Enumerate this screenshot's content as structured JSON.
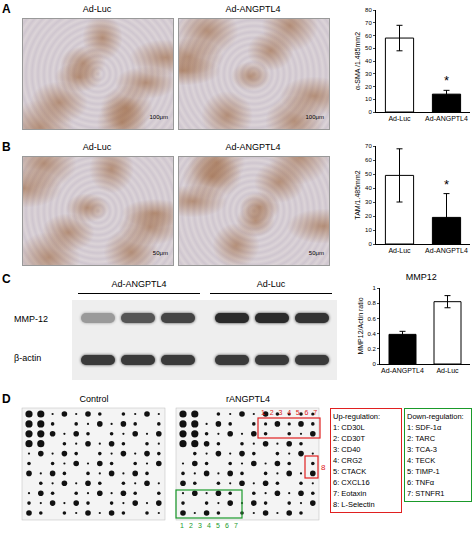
{
  "chart_data": [
    {
      "type": "bar",
      "y_label": "α-SMA /1.485mm2",
      "categories": [
        "Ad-Luc",
        "Ad-ANGPTL4"
      ],
      "values": [
        58,
        14
      ],
      "errors": [
        10,
        3
      ],
      "colors": [
        "#ffffff",
        "#000000"
      ],
      "ylim": [
        0,
        80
      ],
      "yticks": [
        0,
        10,
        20,
        30,
        40,
        50,
        60,
        70,
        80
      ],
      "annotations": [
        {
          "category": "Ad-ANGPTL4",
          "text": "*"
        }
      ]
    },
    {
      "type": "bar",
      "y_label": "TAM/1.485mm2",
      "categories": [
        "Ad-Luc",
        "Ad-ANGPTL4"
      ],
      "values": [
        49,
        19
      ],
      "errors": [
        19,
        17
      ],
      "colors": [
        "#ffffff",
        "#000000"
      ],
      "ylim": [
        0,
        70
      ],
      "yticks": [
        0,
        10,
        20,
        30,
        40,
        50,
        60,
        70
      ],
      "annotations": [
        {
          "category": "Ad-ANGPTL4",
          "text": "*"
        }
      ]
    },
    {
      "type": "bar",
      "title": "MMP12",
      "y_label": "MMP12/Actin ratio",
      "categories": [
        "Ad-ANGPTL4",
        "Ad-Luc"
      ],
      "values": [
        0.39,
        0.82
      ],
      "errors": [
        0.04,
        0.08
      ],
      "colors": [
        "#000000",
        "#ffffff"
      ],
      "ylim": [
        0,
        1
      ],
      "yticks": [
        0,
        0.2,
        0.4,
        0.6,
        0.8,
        1
      ]
    }
  ],
  "panels": {
    "A": {
      "label": "A",
      "images": [
        "Ad-Luc",
        "Ad-ANGPTL4"
      ],
      "scale_bar": "100μm"
    },
    "B": {
      "label": "B",
      "images": [
        "Ad-Luc",
        "Ad-ANGPTL4"
      ],
      "scale_bar": "50μm"
    },
    "C": {
      "label": "C",
      "groups": [
        "Ad-ANGPTL4",
        "Ad-Luc"
      ],
      "rows": [
        "MMP-12",
        "β-actin"
      ]
    },
    "D": {
      "label": "D",
      "arrays": [
        "Control",
        "rANGPTL4"
      ],
      "up": {
        "marks": [
          "1",
          "2",
          "3",
          "4",
          "5",
          "6",
          "7"
        ],
        "side_mark": "8",
        "title": "Up-regulation:",
        "items": [
          "1: CD30L",
          "2: CD30T",
          "3: CD40",
          "4: CRG2",
          "5: CTACK",
          "6: CXCL16",
          "7: Eotaxin",
          "8: L-Selectin"
        ]
      },
      "down": {
        "marks": [
          "1",
          "2",
          "3",
          "4",
          "5",
          "6",
          "7"
        ],
        "title": "Down-regulation:",
        "items": [
          "1: SDF-1α",
          "2: TARC",
          "3: TCA-3",
          "4: TECK",
          "5: TIMP-1",
          "6: TNFα",
          "7: STNFR1"
        ]
      }
    }
  }
}
